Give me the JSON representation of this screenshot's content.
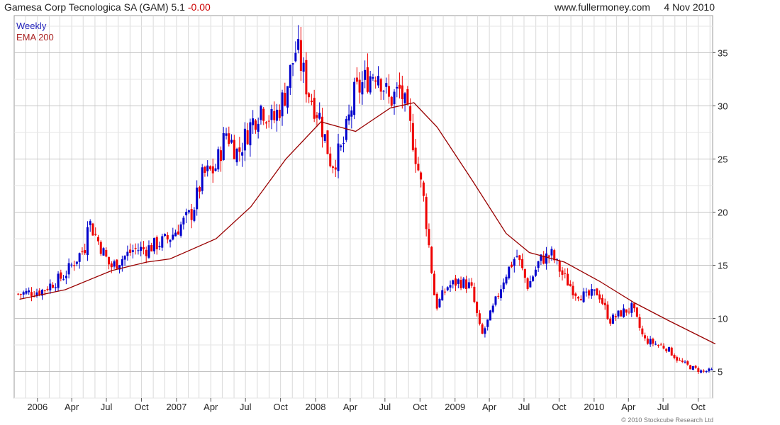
{
  "header": {
    "title": "Gamesa Corp Tecnologica SA (GAM) 5.1",
    "change": "-0.00",
    "site": "www.fullermoney.com",
    "date": "4 Nov 2010"
  },
  "legend": {
    "frequency": "Weekly",
    "ema_label": "EMA 200"
  },
  "copyright": "© 2010 Stockcube Research Ltd",
  "colors": {
    "up": "#0000cc",
    "down": "#ee0000",
    "ema": "#990000",
    "grid": "#d9d9d9",
    "frame": "#999999"
  },
  "chart_data": {
    "type": "candlestick",
    "title": "Gamesa Corp Tecnologica SA (GAM) 5.1 -0.00",
    "frequency": "Weekly",
    "ylim": [
      2.5,
      38.5
    ],
    "y_ticks": [
      5,
      10,
      15,
      20,
      25,
      30,
      35
    ],
    "x_ticks": [
      "2006",
      "Apr",
      "Jul",
      "Oct",
      "2007",
      "Apr",
      "Jul",
      "Oct",
      "2008",
      "Apr",
      "Jul",
      "Oct",
      "2009",
      "Apr",
      "Jul",
      "Oct",
      "2010",
      "Apr",
      "Jul",
      "Oct"
    ],
    "grid": true,
    "legend_position": "top-left",
    "price_series_key_points": [
      [
        "2005-11",
        12.3
      ],
      [
        "2006-01",
        12.6
      ],
      [
        "2006-03",
        14.0
      ],
      [
        "2006-05",
        17.0
      ],
      [
        "2006-05",
        19.5
      ],
      [
        "2006-07",
        14.8
      ],
      [
        "2006-09",
        16.5
      ],
      [
        "2006-10",
        16.5
      ],
      [
        "2006-12",
        17.5
      ],
      [
        "2007-02",
        20.0
      ],
      [
        "2007-03",
        23.5
      ],
      [
        "2007-04",
        24.0
      ],
      [
        "2007-05",
        27.5
      ],
      [
        "2007-06",
        25.5
      ],
      [
        "2007-07",
        28.0
      ],
      [
        "2007-08",
        30.0
      ],
      [
        "2007-09",
        28.5
      ],
      [
        "2007-10",
        31.0
      ],
      [
        "2007-11",
        35.5
      ],
      [
        "2007-12",
        31.5
      ],
      [
        "2008-01",
        29.0
      ],
      [
        "2008-02",
        24.5
      ],
      [
        "2008-03",
        26.0
      ],
      [
        "2008-04",
        31.0
      ],
      [
        "2008-05",
        32.5
      ],
      [
        "2008-06",
        33.5
      ],
      [
        "2008-07",
        30.5
      ],
      [
        "2008-08",
        31.5
      ],
      [
        "2008-09",
        27.0
      ],
      [
        "2008-10",
        21.0
      ],
      [
        "2008-11",
        11.0
      ],
      [
        "2008-12",
        13.0
      ],
      [
        "2009-01",
        13.5
      ],
      [
        "2009-02",
        13.0
      ],
      [
        "2009-03",
        8.3
      ],
      [
        "2009-04",
        11.0
      ],
      [
        "2009-05",
        14.0
      ],
      [
        "2009-06",
        16.0
      ],
      [
        "2009-07",
        13.0
      ],
      [
        "2009-08",
        15.5
      ],
      [
        "2009-09",
        16.0
      ],
      [
        "2009-10",
        14.0
      ],
      [
        "2009-11",
        12.5
      ],
      [
        "2009-12",
        12.0
      ],
      [
        "2010-01",
        12.5
      ],
      [
        "2010-02",
        9.8
      ],
      [
        "2010-03",
        10.5
      ],
      [
        "2010-04",
        11.0
      ],
      [
        "2010-05",
        8.0
      ],
      [
        "2010-06",
        7.6
      ],
      [
        "2010-07",
        7.2
      ],
      [
        "2010-08",
        6.0
      ],
      [
        "2010-09",
        5.4
      ],
      [
        "2010-10",
        5.0
      ],
      [
        "2010-11",
        5.1
      ]
    ],
    "ema_series": {
      "name": "EMA 200",
      "points": [
        [
          "2005-11",
          11.8
        ],
        [
          "2006-03",
          12.7
        ],
        [
          "2006-07",
          14.5
        ],
        [
          "2006-10",
          15.3
        ],
        [
          "2006-12",
          15.6
        ],
        [
          "2007-04",
          17.5
        ],
        [
          "2007-07",
          20.5
        ],
        [
          "2007-10",
          25.0
        ],
        [
          "2008-01",
          28.5
        ],
        [
          "2008-04",
          27.6
        ],
        [
          "2008-07",
          29.8
        ],
        [
          "2008-09",
          30.3
        ],
        [
          "2008-11",
          28.0
        ],
        [
          "2009-02",
          23.0
        ],
        [
          "2009-05",
          18.0
        ],
        [
          "2009-07",
          16.2
        ],
        [
          "2009-10",
          15.3
        ],
        [
          "2010-01",
          13.5
        ],
        [
          "2010-04",
          11.5
        ],
        [
          "2010-07",
          9.8
        ],
        [
          "2010-11",
          7.6
        ]
      ]
    }
  }
}
